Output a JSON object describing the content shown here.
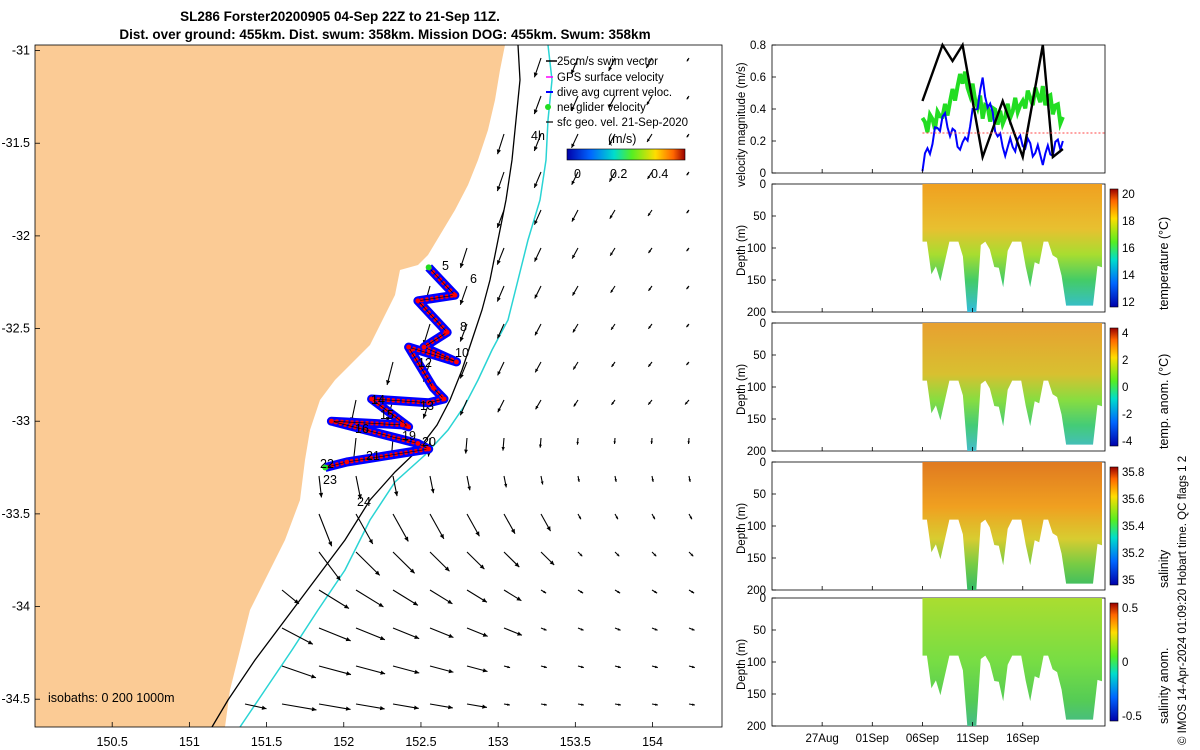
{
  "title": {
    "line1": "SL286 Forster20200905 04-Sep 22Z to 21-Sep 11Z.",
    "line2": "Dist. over ground: 455km. Dist. swum: 358km. Mission DOG: 455km. Swum: 358km"
  },
  "colors": {
    "land": "#fbcb95",
    "ocean": "#ffffff",
    "isobath": "#000000",
    "isobath_1000": "#2ad4d4",
    "track": "#ff0000",
    "current": "#0000ff",
    "net": "#22dd22",
    "black": "#000000"
  },
  "map": {
    "lon_ticks": [
      "150.5",
      "151",
      "151.5",
      "152",
      "152.5",
      "153",
      "153.5",
      "154"
    ],
    "lat_ticks": [
      "-31",
      "-31.5",
      "-32",
      "-32.5",
      "-33",
      "-33.5",
      "-34",
      "-34.5"
    ],
    "legend": [
      "25cm/s swim vector",
      "GPS surface velocity",
      "dive avg current veloc.",
      "net glider velocity",
      "sfc geo. vel. 21-Sep-2020"
    ],
    "colorbar_title": "(m/s)",
    "colorbar_ticks": [
      "0",
      "0.2",
      "0.4"
    ],
    "isobath_label": "isobaths: 0   200 1000m",
    "day_labels": [
      "4h",
      "5",
      "6",
      "8",
      "10",
      "12",
      "13",
      "14",
      "15",
      "16",
      "19",
      "20",
      "21",
      "22",
      "23",
      "24"
    ]
  },
  "time_axis": {
    "ticks": [
      "27Aug",
      "01Sep",
      "06Sep",
      "11Sep",
      "16Sep"
    ]
  },
  "panels": {
    "velocity": {
      "ylabel": "velocity magnitude (m/s)",
      "yticks": [
        "0",
        "0.2",
        "0.4",
        "0.6",
        "0.8"
      ]
    },
    "temperature": {
      "ylabel": "Depth (m)",
      "cblabel": "temperature (°C)",
      "cbticks": [
        "20",
        "18",
        "16",
        "14",
        "12"
      ],
      "yticks": [
        "0",
        "50",
        "100",
        "150",
        "200"
      ]
    },
    "temp_anom": {
      "ylabel": "Depth (m)",
      "cblabel": "temp. anom. (°C)",
      "cbticks": [
        "4",
        "2",
        "0",
        "-2",
        "-4"
      ],
      "yticks": [
        "0",
        "50",
        "100",
        "150",
        "200"
      ]
    },
    "salinity": {
      "ylabel": "Depth (m)",
      "cblabel": "salinity",
      "cbticks": [
        "35.8",
        "35.6",
        "35.4",
        "35.2",
        "35"
      ],
      "yticks": [
        "0",
        "50",
        "100",
        "150",
        "200"
      ]
    },
    "sal_anom": {
      "ylabel": "Depth (m)",
      "cblabel": "salinity anom.",
      "cbticks": [
        "0.5",
        "0",
        "-0.5"
      ],
      "yticks": [
        "0",
        "50",
        "100",
        "150",
        "200"
      ]
    }
  },
  "side_note": "© IMOS 14-Apr-2024 01:09:20 Hobart time. QC flags 1  2",
  "chart_data": [
    {
      "type": "scatter",
      "title": "SL286 Forster20200905 04-Sep 22Z to 21-Sep 11Z.",
      "xlabel": "",
      "ylabel": "",
      "xlim": [
        150.0,
        154.45
      ],
      "ylim": [
        -34.65,
        -30.97
      ],
      "series": [
        {
          "name": "track",
          "x": [
            152.55,
            152.72,
            152.48,
            152.67,
            152.52,
            152.73,
            152.42,
            152.58,
            152.65,
            152.55,
            152.18,
            152.42,
            152.38,
            151.92,
            152.48,
            152.55,
            152.02,
            151.88
          ],
          "y": [
            -32.17,
            -32.32,
            -32.35,
            -32.52,
            -32.6,
            -32.68,
            -32.6,
            -32.82,
            -32.88,
            -32.9,
            -32.88,
            -33.03,
            -33.02,
            -33.0,
            -33.12,
            -33.15,
            -33.22,
            -33.25
          ]
        }
      ]
    },
    {
      "type": "line",
      "xlabel": "",
      "ylabel": "velocity magnitude (m/s)",
      "ylim": [
        0,
        0.8
      ],
      "series": [
        {
          "name": "",
          "x": [
            "06Sep",
            "08Sep",
            "09Sep",
            "10Sep",
            "12Sep",
            "14Sep",
            "16Sep",
            "18Sep",
            "19Sep",
            "20Sep"
          ],
          "values": [
            0.45,
            0.8,
            0.7,
            0.8,
            0.1,
            0.45,
            0.1,
            0.8,
            0.1,
            0.15
          ]
        },
        {
          "name": "",
          "x": [
            "06Sep",
            "08Sep",
            "10Sep",
            "12Sep",
            "14Sep",
            "16Sep",
            "18Sep",
            "20Sep"
          ],
          "values": [
            0.3,
            0.35,
            0.6,
            0.4,
            0.35,
            0.45,
            0.5,
            0.35
          ]
        },
        {
          "name": "",
          "x": [
            "06Sep",
            "08Sep",
            "10Sep",
            "12Sep",
            "14Sep",
            "16Sep",
            "18Sep",
            "20Sep"
          ],
          "values": [
            0.05,
            0.35,
            0.15,
            0.55,
            0.15,
            0.2,
            0.1,
            0.2
          ]
        }
      ]
    }
  ]
}
